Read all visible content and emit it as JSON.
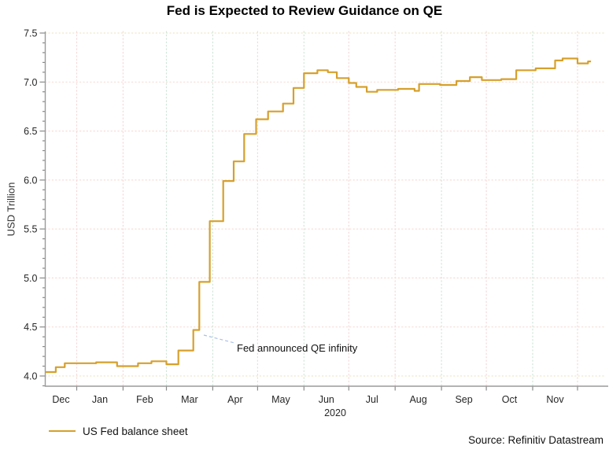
{
  "header": {
    "title": "Fed is Expected to Review Guidance on QE"
  },
  "footer": {
    "source": "Source: Refinitiv Datastream"
  },
  "colors": {
    "line": "#d6a02c",
    "grid_pink": "#f5d8d8",
    "grid_teal": "#cfe6d8",
    "grid_cream": "#efe7c9",
    "axis": "#9a9a9a",
    "annotation_leader": "#a9c0e8",
    "text": "#111111"
  },
  "chart_data": {
    "type": "line",
    "title": "Fed is Expected to Review Guidance on QE",
    "xlabel": "",
    "ylabel": "USD Trillion",
    "ylim": [
      3.9,
      7.52
    ],
    "grid": "dotted",
    "y_tick_labels": [
      "4.0",
      "4.5",
      "5.0",
      "5.5",
      "6.0",
      "6.5",
      "7.0",
      "7.5"
    ],
    "x_tick_labels": [
      "Dec",
      "Jan",
      "Feb",
      "Mar",
      "Apr",
      "May",
      "Jun",
      "Jul",
      "Aug",
      "Sep",
      "Oct",
      "Nov"
    ],
    "year_label": "2020",
    "legend": {
      "position": "bottom-left",
      "entries": [
        {
          "label": "US Fed balance sheet",
          "color": "#d6a02c"
        }
      ]
    },
    "annotation": {
      "text": "Fed announced QE infinity",
      "anchor_date": "2020-03-20",
      "anchor_value": 4.47
    },
    "series": [
      {
        "name": "US Fed balance sheet",
        "step": true,
        "units": "USD trillion",
        "points": [
          [
            "2019-12-11",
            4.04
          ],
          [
            "2019-12-18",
            4.09
          ],
          [
            "2019-12-24",
            4.13
          ],
          [
            "2020-01-14",
            4.14
          ],
          [
            "2020-01-28",
            4.1
          ],
          [
            "2020-02-11",
            4.13
          ],
          [
            "2020-02-20",
            4.15
          ],
          [
            "2020-03-01",
            4.12
          ],
          [
            "2020-03-09",
            4.26
          ],
          [
            "2020-03-19",
            4.47
          ],
          [
            "2020-03-23",
            4.96
          ],
          [
            "2020-03-30",
            5.58
          ],
          [
            "2020-04-08",
            5.99
          ],
          [
            "2020-04-15",
            6.19
          ],
          [
            "2020-04-22",
            6.47
          ],
          [
            "2020-04-30",
            6.62
          ],
          [
            "2020-05-08",
            6.7
          ],
          [
            "2020-05-18",
            6.78
          ],
          [
            "2020-05-25",
            6.94
          ],
          [
            "2020-06-01",
            7.09
          ],
          [
            "2020-06-10",
            7.12
          ],
          [
            "2020-06-17",
            7.1
          ],
          [
            "2020-06-23",
            7.04
          ],
          [
            "2020-07-01",
            6.99
          ],
          [
            "2020-07-06",
            6.95
          ],
          [
            "2020-07-13",
            6.9
          ],
          [
            "2020-07-20",
            6.92
          ],
          [
            "2020-08-03",
            6.93
          ],
          [
            "2020-08-14",
            6.91
          ],
          [
            "2020-08-17",
            6.98
          ],
          [
            "2020-08-31",
            6.97
          ],
          [
            "2020-09-11",
            7.01
          ],
          [
            "2020-09-20",
            7.05
          ],
          [
            "2020-09-28",
            7.02
          ],
          [
            "2020-10-11",
            7.03
          ],
          [
            "2020-10-21",
            7.12
          ],
          [
            "2020-11-03",
            7.14
          ],
          [
            "2020-11-16",
            7.22
          ],
          [
            "2020-11-21",
            7.24
          ],
          [
            "2020-12-01",
            7.19
          ],
          [
            "2020-12-08",
            7.21
          ]
        ],
        "x_end": "2020-12-10"
      }
    ]
  }
}
